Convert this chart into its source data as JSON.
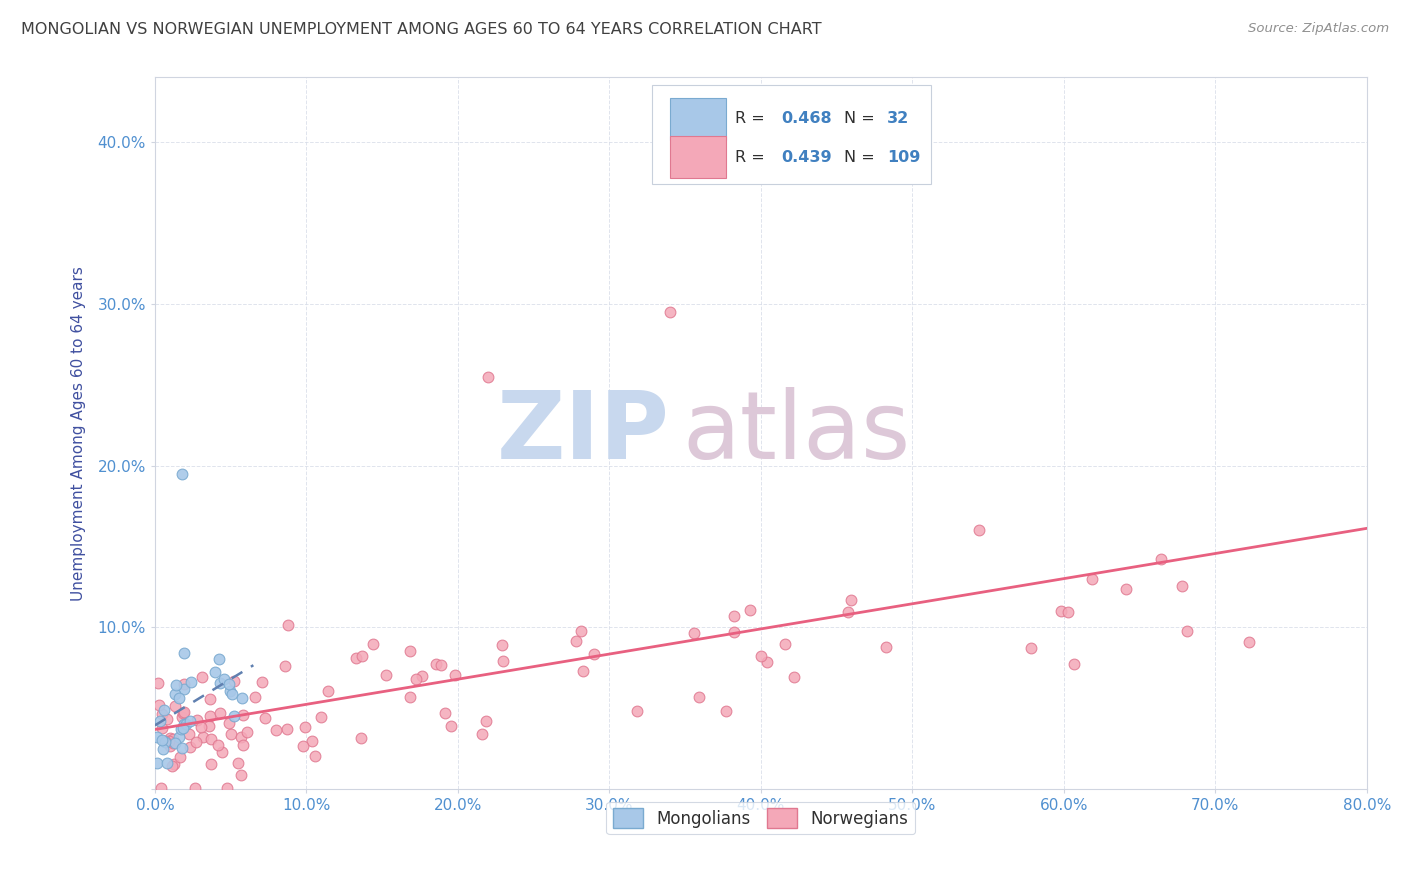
{
  "title": "MONGOLIAN VS NORWEGIAN UNEMPLOYMENT AMONG AGES 60 TO 64 YEARS CORRELATION CHART",
  "source": "Source: ZipAtlas.com",
  "ylabel": "Unemployment Among Ages 60 to 64 years",
  "xlim": [
    0,
    0.8
  ],
  "ylim": [
    0,
    0.44
  ],
  "xticks": [
    0.0,
    0.1,
    0.2,
    0.3,
    0.4,
    0.5,
    0.6,
    0.7,
    0.8
  ],
  "yticks": [
    0.0,
    0.1,
    0.2,
    0.3,
    0.4
  ],
  "mongolian_R": 0.468,
  "mongolian_N": 32,
  "norwegian_R": 0.439,
  "norwegian_N": 109,
  "mongolian_color": "#a8c8e8",
  "mongolian_edge": "#7aaad0",
  "norwegian_color": "#f4a8b8",
  "norwegian_edge": "#e07890",
  "mongolian_trend_color": "#6080b0",
  "norwegian_trend_color": "#e86080",
  "title_color": "#404040",
  "tick_color": "#5090d0",
  "ylabel_color": "#4050a0",
  "source_color": "#909090",
  "watermark_text": "ZIPatlas",
  "watermark_zip_color": "#c8d8ee",
  "watermark_atlas_color": "#d8c8d8",
  "grid_color": "#d8dde8",
  "spine_color": "#d0d5e0",
  "legend_edge_color": "#c8d0dc"
}
